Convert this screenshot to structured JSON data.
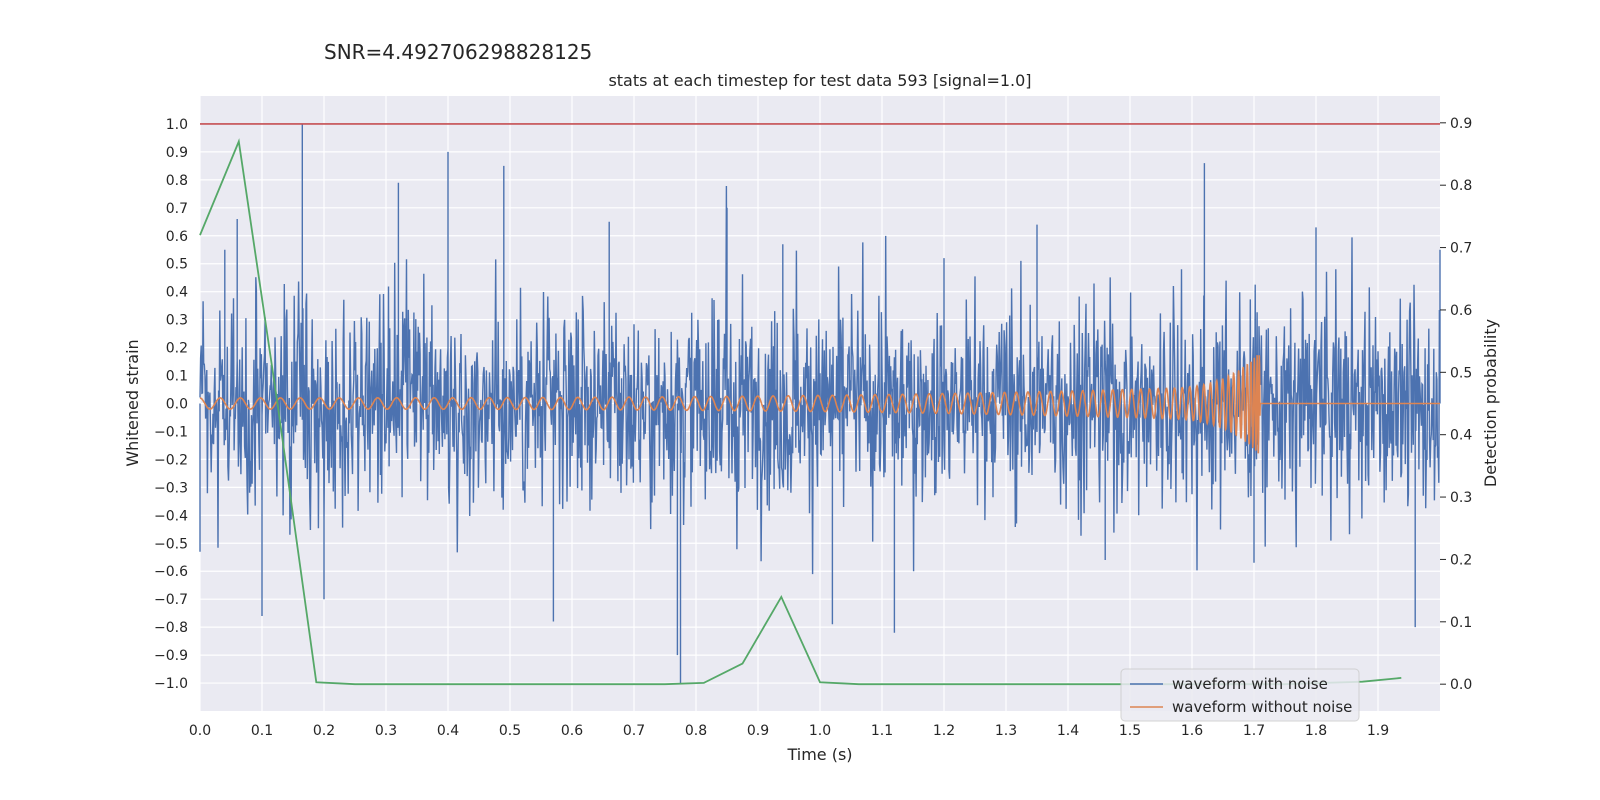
{
  "header": {
    "suptitle": "SNR=4.492706298828125",
    "title": "stats at each timestep for test data 593 [signal=1.0]"
  },
  "chart_data": {
    "type": "line",
    "xlabel": "Time (s)",
    "ylabel_left": "Whitened strain",
    "ylabel_right": "Detection probability",
    "xlim": [
      0.0,
      2.0
    ],
    "ylim_left": [
      -1.1,
      1.1
    ],
    "ylim_right": [
      -0.043,
      0.943
    ],
    "xticks": [
      "0.0",
      "0.1",
      "0.2",
      "0.3",
      "0.4",
      "0.5",
      "0.6",
      "0.7",
      "0.8",
      "0.9",
      "1.0",
      "1.1",
      "1.2",
      "1.3",
      "1.4",
      "1.5",
      "1.6",
      "1.7",
      "1.8",
      "1.9"
    ],
    "yticks_left": [
      "1.0",
      "0.9",
      "0.8",
      "0.7",
      "0.6",
      "0.5",
      "0.4",
      "0.3",
      "0.2",
      "0.1",
      "0.0",
      "−0.1",
      "−0.2",
      "−0.3",
      "−0.4",
      "−0.5",
      "−0.6",
      "−0.7",
      "−0.8",
      "−0.9",
      "−1.0"
    ],
    "yticks_right": [
      "0.9",
      "0.8",
      "0.7",
      "0.6",
      "0.5",
      "0.4",
      "0.3",
      "0.2",
      "0.1",
      "0.0"
    ],
    "grid": true,
    "legend_position": "lower-right",
    "series": [
      {
        "name": "waveform with noise",
        "axis": "left",
        "color": "#4c72b0",
        "description_points": {
          "x": [
            0.0,
            0.04,
            0.06,
            0.1,
            0.165,
            0.2,
            0.32,
            0.4,
            0.49,
            0.57,
            0.66,
            0.77,
            0.775,
            0.85,
            0.94,
            1.02,
            1.12,
            1.2,
            1.35,
            1.46,
            1.62,
            1.7,
            1.8,
            1.96,
            2.0
          ],
          "y": [
            -0.53,
            0.55,
            0.66,
            -0.76,
            1.0,
            -0.7,
            0.79,
            0.9,
            0.85,
            -0.78,
            0.65,
            -0.9,
            -1.0,
            0.7,
            0.57,
            -0.79,
            -0.82,
            0.52,
            0.64,
            -0.56,
            0.86,
            -0.57,
            0.63,
            -0.8,
            0.55
          ]
        }
      },
      {
        "name": "waveform without noise",
        "axis": "left",
        "color": "#dd8452",
        "description_points": {
          "x": [
            0.0,
            0.5,
            1.0,
            1.5,
            1.65,
            1.7,
            1.71,
            1.715,
            2.0
          ],
          "y": [
            0.02,
            0.025,
            0.035,
            0.06,
            0.08,
            0.18,
            -0.15,
            0.0,
            0.0
          ]
        }
      },
      {
        "name": "detection probability",
        "axis": "right",
        "color": "#55a868",
        "x": [
          0.0,
          0.0625,
          0.125,
          0.1875,
          0.25,
          0.3125,
          0.375,
          0.4375,
          0.5,
          0.5625,
          0.625,
          0.6875,
          0.75,
          0.8125,
          0.875,
          0.9375,
          1.0,
          1.0625,
          1.125,
          1.1875,
          1.25,
          1.3125,
          1.375,
          1.4375,
          1.5,
          1.5625,
          1.625,
          1.6875,
          1.75,
          1.8125,
          1.875,
          1.9375
        ],
        "y": [
          0.72,
          0.87,
          0.45,
          0.003,
          0.0,
          0.0,
          0.0,
          0.0,
          0.0,
          0.0,
          0.0,
          0.0,
          0.0,
          0.002,
          0.033,
          0.14,
          0.003,
          0.0,
          0.0,
          0.0,
          0.0,
          0.0,
          0.0,
          0.0,
          0.0,
          0.0,
          0.0,
          0.0,
          0.0,
          0.002,
          0.004,
          0.01
        ]
      }
    ],
    "hline": {
      "y": 1.0,
      "axis": "left",
      "color": "#c44e52"
    },
    "legend": [
      {
        "label": "waveform with noise",
        "color": "#4c72b0"
      },
      {
        "label": "waveform without noise",
        "color": "#dd8452"
      }
    ]
  }
}
